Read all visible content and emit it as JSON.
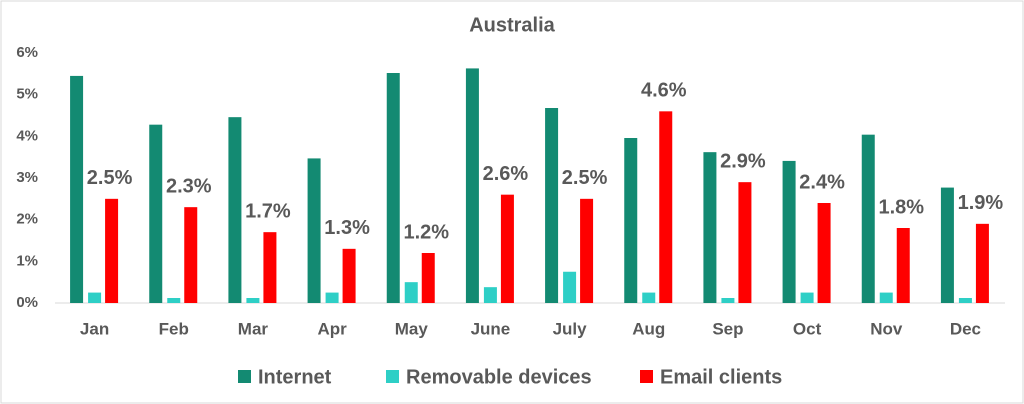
{
  "chart_data": {
    "type": "bar",
    "title": "Australia",
    "categories": [
      "Jan",
      "Feb",
      "Mar",
      "Apr",
      "May",
      "June",
      "July",
      "Aug",
      "Sep",
      "Oct",
      "Nov",
      "Dec"
    ],
    "series": [
      {
        "name": "Internet",
        "color": "#138a72",
        "values": [
          5.45,
          4.28,
          4.46,
          3.47,
          5.52,
          5.63,
          4.68,
          3.96,
          3.62,
          3.41,
          4.04,
          2.77
        ]
      },
      {
        "name": "Removable devices",
        "color": "#2ecfc6",
        "values": [
          0.25,
          0.12,
          0.12,
          0.25,
          0.5,
          0.38,
          0.75,
          0.25,
          0.12,
          0.25,
          0.25,
          0.12
        ]
      },
      {
        "name": "Email clients",
        "color": "#ff0000",
        "values": [
          2.5,
          2.3,
          1.7,
          1.3,
          1.2,
          2.6,
          2.5,
          4.6,
          2.9,
          2.4,
          1.8,
          1.9
        ],
        "value_labels": [
          "2.5%",
          "2.3%",
          "1.7%",
          "1.3%",
          "1.2%",
          "2.6%",
          "2.5%",
          "4.6%",
          "2.9%",
          "2.4%",
          "1.8%",
          "1.9%"
        ]
      }
    ],
    "ylim": [
      0,
      6
    ],
    "yticks": [
      {
        "value": 0,
        "label": "0%"
      },
      {
        "value": 1,
        "label": "1%"
      },
      {
        "value": 2,
        "label": "2%"
      },
      {
        "value": 3,
        "label": "3%"
      },
      {
        "value": 4,
        "label": "4%"
      },
      {
        "value": 5,
        "label": "5%"
      },
      {
        "value": 6,
        "label": "6%"
      }
    ],
    "grid": false,
    "legend": "bottom"
  }
}
